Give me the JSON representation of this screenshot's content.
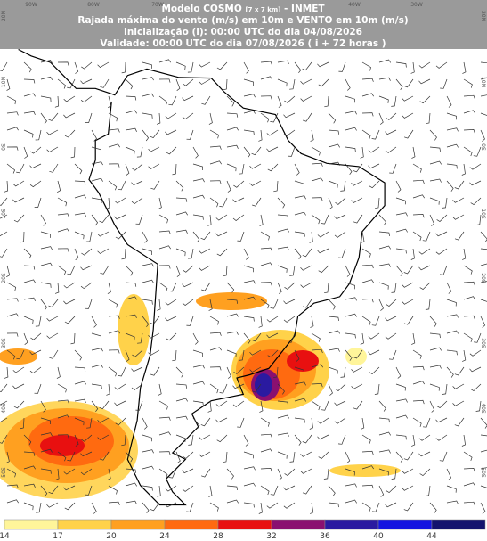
{
  "header": {
    "title_main": "Modelo COSMO",
    "title_res": "[7 x 7 km]",
    "title_org": "- INMET",
    "subtitle": "Rajada máxima do vento (m/s) em 10m e VENTO em 10m (m/s)",
    "init": "Inicialização (i): 00:00 UTC do dia 04/08/2026",
    "valid": "Validade: 00:00 UTC do dia 07/08/2026 ( i + 72 horas )"
  },
  "map": {
    "lon_labels": [
      "90W",
      "80W",
      "70W",
      "40W",
      "30W"
    ],
    "lat_labels": [
      "20N",
      "10N",
      "0S",
      "10S",
      "20S",
      "30S",
      "40S",
      "50S"
    ]
  },
  "legend": {
    "ticks": [
      14,
      17,
      20,
      24,
      28,
      32,
      36,
      40,
      44
    ],
    "colors": [
      "#fff59a",
      "#ffd24a",
      "#ffa020",
      "#ff6a10",
      "#e81010",
      "#8a1070",
      "#2a1aa0",
      "#1414e0",
      "#14146e",
      "#505050"
    ]
  }
}
